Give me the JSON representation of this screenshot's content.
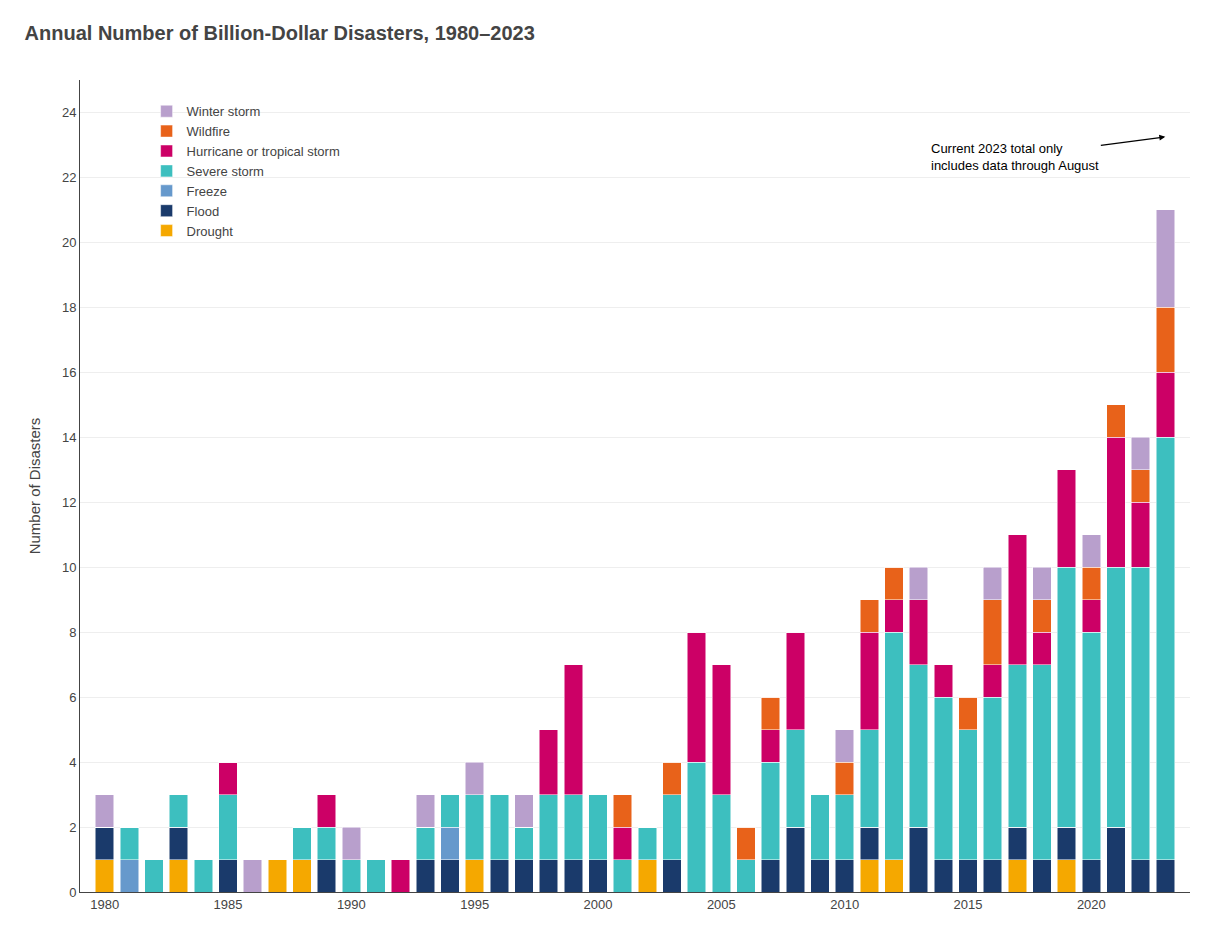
{
  "chart_data": {
    "type": "bar",
    "stacked": true,
    "title": "Annual Number of Billion-Dollar Disasters, 1980–2023",
    "ylabel": "Number of Disasters",
    "annotation": "Current 2023 total only\nincludes data through August",
    "x": [
      1980,
      1981,
      1982,
      1983,
      1984,
      1985,
      1986,
      1987,
      1988,
      1989,
      1990,
      1991,
      1992,
      1993,
      1994,
      1995,
      1996,
      1997,
      1998,
      1999,
      2000,
      2001,
      2002,
      2003,
      2004,
      2005,
      2006,
      2007,
      2008,
      2009,
      2010,
      2011,
      2012,
      2013,
      2014,
      2015,
      2016,
      2017,
      2018,
      2019,
      2020,
      2021,
      2022,
      2023
    ],
    "series": [
      {
        "name": "Drought",
        "color": "#F5A800",
        "values": [
          1,
          0,
          0,
          1,
          0,
          0,
          0,
          1,
          1,
          0,
          0,
          0,
          0,
          0,
          0,
          1,
          0,
          0,
          0,
          0,
          0,
          0,
          1,
          0,
          0,
          0,
          0,
          0,
          0,
          0,
          0,
          1,
          1,
          0,
          0,
          0,
          0,
          1,
          0,
          1,
          0,
          0,
          0,
          0
        ]
      },
      {
        "name": "Flood",
        "color": "#1A3A6B",
        "values": [
          1,
          0,
          0,
          1,
          0,
          1,
          0,
          0,
          0,
          1,
          0,
          0,
          0,
          1,
          1,
          0,
          1,
          1,
          1,
          1,
          1,
          0,
          0,
          1,
          0,
          0,
          0,
          1,
          2,
          1,
          1,
          1,
          0,
          2,
          1,
          1,
          1,
          1,
          1,
          1,
          1,
          2,
          1,
          1
        ]
      },
      {
        "name": "Freeze",
        "color": "#6699CC",
        "values": [
          0,
          1,
          0,
          0,
          0,
          0,
          0,
          0,
          0,
          0,
          0,
          0,
          0,
          0,
          1,
          0,
          0,
          0,
          0,
          0,
          0,
          0,
          0,
          0,
          0,
          0,
          0,
          0,
          0,
          0,
          0,
          0,
          0,
          0,
          0,
          0,
          0,
          0,
          0,
          0,
          0,
          0,
          0,
          0
        ]
      },
      {
        "name": "Severe storm",
        "color": "#3DBFBF",
        "values": [
          0,
          1,
          1,
          1,
          1,
          2,
          0,
          0,
          1,
          1,
          1,
          1,
          0,
          1,
          1,
          2,
          2,
          1,
          2,
          2,
          2,
          1,
          1,
          2,
          4,
          3,
          1,
          3,
          3,
          2,
          2,
          3,
          7,
          5,
          5,
          4,
          5,
          5,
          6,
          8,
          7,
          8,
          9,
          13
        ]
      },
      {
        "name": "Hurricane or tropical storm",
        "color": "#CC0066",
        "values": [
          0,
          0,
          0,
          0,
          0,
          1,
          0,
          0,
          0,
          1,
          0,
          0,
          1,
          0,
          0,
          0,
          0,
          0,
          2,
          4,
          0,
          1,
          0,
          0,
          4,
          4,
          0,
          1,
          3,
          0,
          0,
          3,
          1,
          2,
          1,
          0,
          1,
          4,
          1,
          3,
          1,
          4,
          2,
          2
        ]
      },
      {
        "name": "Wildfire",
        "color": "#E8621A",
        "values": [
          0,
          0,
          0,
          0,
          0,
          0,
          0,
          0,
          0,
          0,
          0,
          0,
          0,
          0,
          0,
          0,
          0,
          0,
          0,
          0,
          0,
          1,
          0,
          1,
          0,
          0,
          1,
          1,
          0,
          0,
          1,
          1,
          1,
          0,
          0,
          1,
          2,
          0,
          1,
          0,
          1,
          1,
          1,
          2
        ]
      },
      {
        "name": "Winter storm",
        "color": "#B89FCC",
        "values": [
          1,
          0,
          0,
          0,
          0,
          0,
          1,
          0,
          0,
          0,
          1,
          0,
          0,
          1,
          0,
          1,
          0,
          1,
          0,
          0,
          0,
          0,
          0,
          0,
          0,
          0,
          0,
          0,
          0,
          0,
          1,
          0,
          0,
          1,
          0,
          0,
          1,
          0,
          1,
          0,
          1,
          0,
          1,
          3
        ]
      }
    ],
    "xlim": [
      1979,
      2024
    ],
    "xticks": [
      1980,
      1985,
      1990,
      1995,
      2000,
      2005,
      2010,
      2015,
      2020
    ],
    "ylim": [
      0,
      25
    ],
    "yticks": [
      0,
      2,
      4,
      6,
      8,
      10,
      12,
      14,
      16,
      18,
      20,
      22,
      24
    ],
    "grid": true,
    "legend": "upper left"
  }
}
